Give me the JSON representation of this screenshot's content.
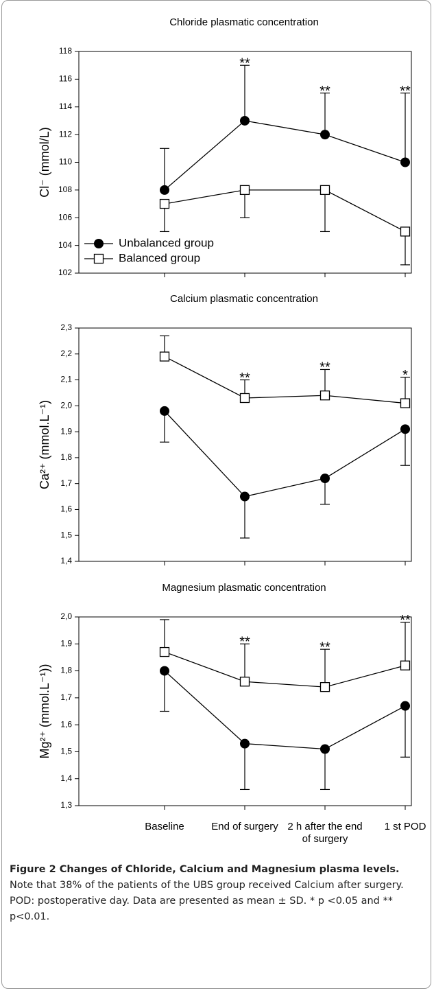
{
  "chart_data": [
    {
      "type": "line",
      "title": "Chloride plasmatic concentration",
      "ylabel": "Cl⁻ (mmol/L)",
      "ylim": [
        102,
        118
      ],
      "yticks": [
        102,
        104,
        106,
        108,
        110,
        112,
        114,
        116,
        118
      ],
      "legend": "lower left",
      "series": [
        {
          "name": "Unbalanced group",
          "marker": "filled-circle",
          "color": "#000000",
          "values": [
            108,
            113,
            112,
            110
          ],
          "errors": [
            3,
            4,
            3,
            5
          ],
          "error_direction": "up"
        },
        {
          "name": "Balanced group",
          "marker": "open-square",
          "color": "#000000",
          "values": [
            107,
            108,
            108,
            105
          ],
          "errors": [
            2,
            2,
            3,
            2.4
          ],
          "error_direction": "down"
        }
      ],
      "annotations": [
        null,
        "**",
        "**",
        "**"
      ]
    },
    {
      "type": "line",
      "title": "Calcium plasmatic concentration",
      "ylabel": "Ca²⁺ (mmol.L⁻¹)",
      "ylim": [
        1.4,
        2.3
      ],
      "yticks": [
        {
          "value": 1.4,
          "label": "1,4"
        },
        {
          "value": 1.5,
          "label": "1,5"
        },
        {
          "value": 1.6,
          "label": "1,6"
        },
        {
          "value": 1.7,
          "label": "1,7"
        },
        {
          "value": 1.8,
          "label": "1,8"
        },
        {
          "value": 1.9,
          "label": "1,9"
        },
        {
          "value": 2.0,
          "label": "2,0"
        },
        {
          "value": 2.1,
          "label": "2,1"
        },
        {
          "value": 2.2,
          "label": "2,2"
        },
        {
          "value": 2.3,
          "label": "2,3"
        }
      ],
      "series": [
        {
          "marker": "filled-circle",
          "color": "#000000",
          "values": [
            1.98,
            1.65,
            1.72,
            1.91
          ],
          "errors": [
            0.12,
            0.16,
            0.1,
            0.14
          ],
          "error_direction": "down"
        },
        {
          "marker": "open-square",
          "color": "#000000",
          "values": [
            2.19,
            2.03,
            2.04,
            2.01
          ],
          "errors": [
            0.08,
            0.07,
            0.1,
            0.1
          ],
          "error_direction": "up"
        }
      ],
      "annotations": [
        null,
        "**",
        "**",
        "*"
      ]
    },
    {
      "type": "line",
      "title": "Magnesium plasmatic concentration",
      "ylabel": "Mg²⁺ (mmol.L⁻¹))",
      "categories": [
        "Baseline",
        "End of surgery",
        "2 h after the end of surgery",
        "1 st POD"
      ],
      "ylim": [
        1.3,
        2.0
      ],
      "yticks": [
        {
          "value": 1.3,
          "label": "1,3"
        },
        {
          "value": 1.4,
          "label": "1,4"
        },
        {
          "value": 1.5,
          "label": "1,5"
        },
        {
          "value": 1.6,
          "label": "1,6"
        },
        {
          "value": 1.7,
          "label": "1,7"
        },
        {
          "value": 1.8,
          "label": "1,8"
        },
        {
          "value": 1.9,
          "label": "1,9"
        },
        {
          "value": 2.0,
          "label": "2,0"
        }
      ],
      "series": [
        {
          "marker": "filled-circle",
          "color": "#000000",
          "values": [
            1.8,
            1.53,
            1.51,
            1.67
          ],
          "errors": [
            0.15,
            0.17,
            0.15,
            0.19
          ],
          "error_direction": "down"
        },
        {
          "marker": "open-square",
          "color": "#000000",
          "values": [
            1.87,
            1.76,
            1.74,
            1.82
          ],
          "errors": [
            0.12,
            0.14,
            0.14,
            0.16
          ],
          "error_direction": "up"
        }
      ],
      "annotations": [
        null,
        "**",
        "**",
        "**"
      ]
    }
  ],
  "caption": {
    "label": "Figure 2 Changes of Chloride, Calcium and Magnesium plasma levels.",
    "text": "Note that 38% of the patients of the UBS group received Calcium after surgery. POD: postoperative day. Data are presented as mean ± SD. * p <0.05 and ** p<0.01."
  }
}
